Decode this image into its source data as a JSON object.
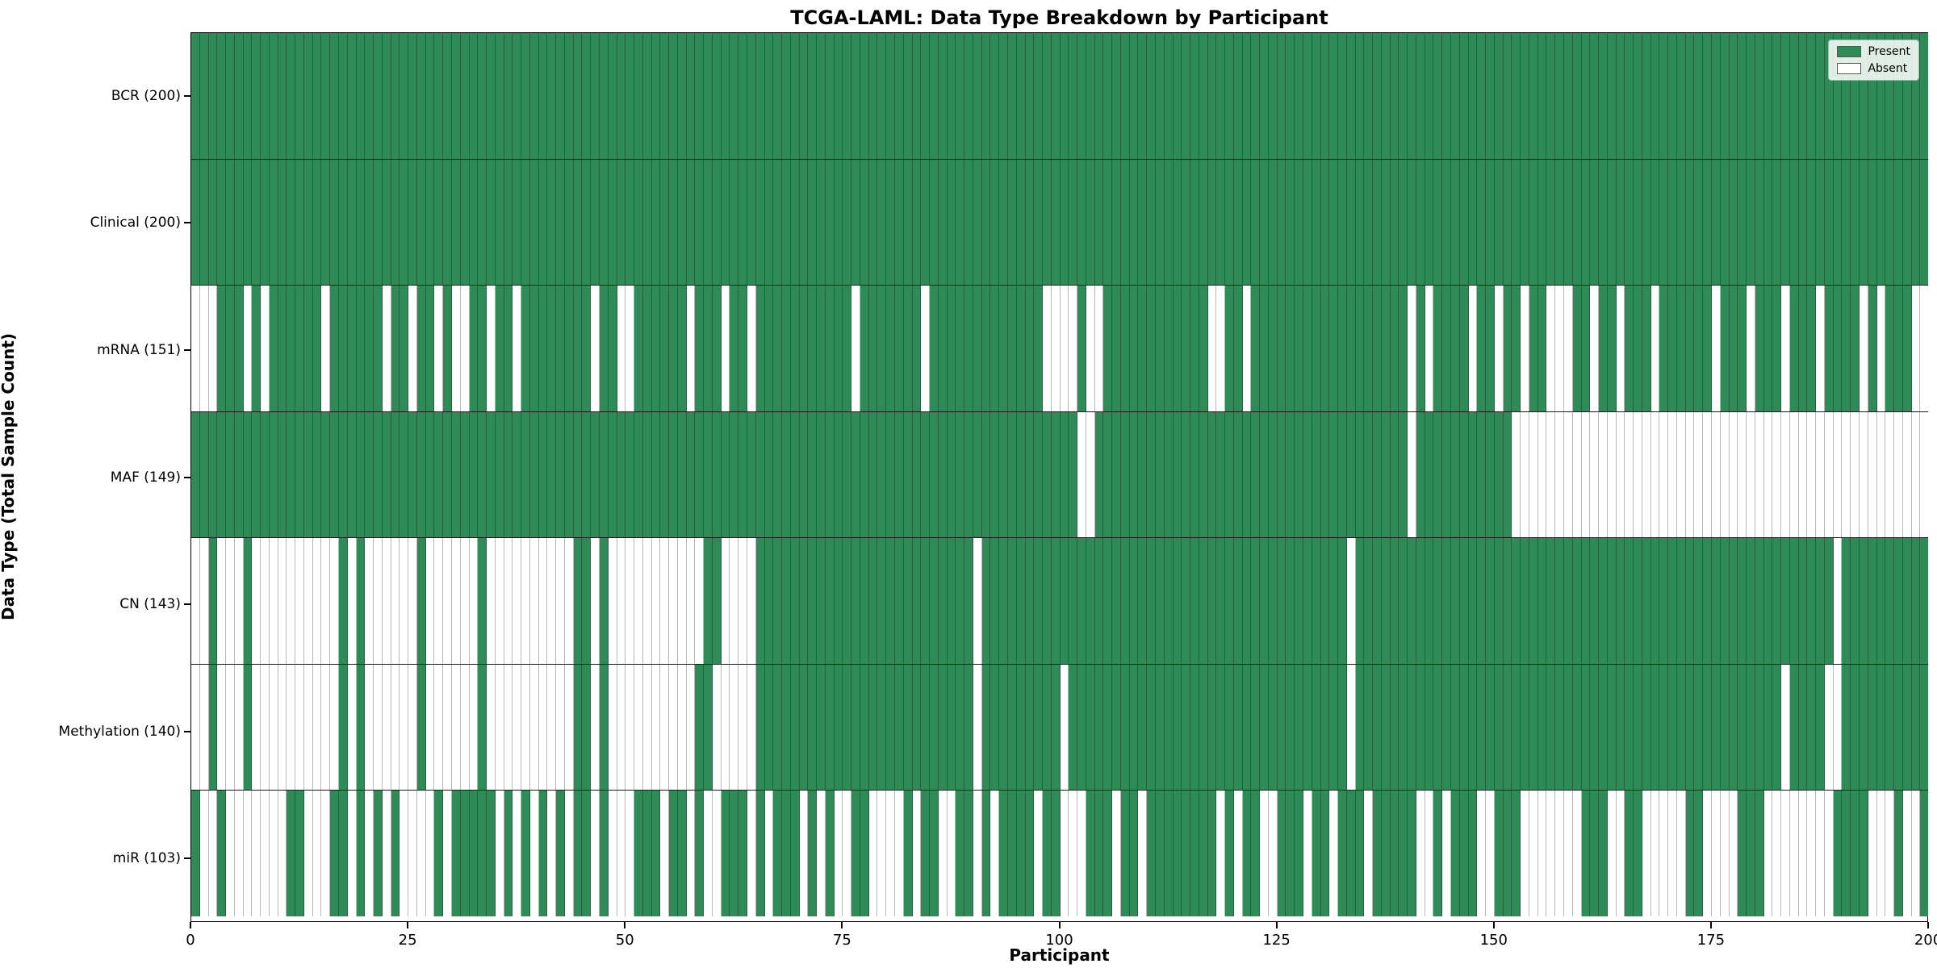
{
  "title": "TCGA-LAML: Data Type Breakdown by Participant",
  "x_axis": {
    "label": "Participant",
    "ticks": [
      0,
      25,
      50,
      75,
      100,
      125,
      150,
      175,
      200
    ]
  },
  "y_axis": {
    "label": "Data Type (Total Sample Count)"
  },
  "legend": {
    "present_label": "Present",
    "absent_label": "Absent"
  },
  "colors": {
    "present": "#2e8b57",
    "absent": "#ffffff",
    "cell_edge": "rgba(0,0,0,0.28)",
    "row_divider": "#1c1c1c",
    "plot_border": "#000000",
    "legend_bg": "rgba(255,255,255,0.85)"
  },
  "chart_data": {
    "type": "heatmap",
    "title": "TCGA-LAML: Data Type Breakdown by Participant",
    "xlabel": "Participant",
    "ylabel": "Data Type (Total Sample Count)",
    "x_range": [
      0,
      200
    ],
    "n_participants": 200,
    "legend_position": "upper right",
    "legend_entries": [
      "Present",
      "Absent"
    ],
    "rows": [
      {
        "label": "BCR (200)",
        "name": "BCR",
        "present_count": 200,
        "absent_participants": []
      },
      {
        "label": "Clinical (200)",
        "name": "Clinical",
        "present_count": 200,
        "absent_participants": []
      },
      {
        "label": "mRNA (151)",
        "name": "mRNA",
        "present_count": 151,
        "absent_participants": [
          0,
          1,
          2,
          6,
          8,
          15,
          22,
          25,
          28,
          30,
          31,
          34,
          37,
          46,
          49,
          50,
          57,
          61,
          64,
          76,
          84,
          98,
          99,
          100,
          101,
          103,
          104,
          117,
          118,
          121,
          140,
          142,
          147,
          150,
          153,
          156,
          157,
          158,
          161,
          164,
          168,
          175,
          179,
          183,
          187,
          192,
          194,
          198,
          199
        ]
      },
      {
        "label": "MAF (149)",
        "name": "MAF",
        "present_count": 149,
        "absent_participants": [
          102,
          103,
          140,
          152,
          153,
          154,
          155,
          156,
          157,
          158,
          159,
          160,
          161,
          162,
          163,
          164,
          165,
          166,
          167,
          168,
          169,
          170,
          171,
          172,
          173,
          174,
          175,
          176,
          177,
          178,
          179,
          180,
          181,
          182,
          183,
          184,
          185,
          186,
          187,
          188,
          189,
          190,
          191,
          192,
          193,
          194,
          195,
          196,
          197,
          198,
          199
        ]
      },
      {
        "label": "CN (143)",
        "name": "CN",
        "present_count": 143,
        "absent_participants": [
          0,
          1,
          3,
          4,
          5,
          7,
          8,
          9,
          10,
          11,
          12,
          13,
          14,
          15,
          16,
          18,
          20,
          21,
          22,
          23,
          24,
          25,
          27,
          28,
          29,
          30,
          31,
          32,
          34,
          35,
          36,
          37,
          38,
          39,
          40,
          41,
          42,
          43,
          46,
          48,
          49,
          50,
          51,
          52,
          53,
          54,
          55,
          56,
          57,
          58,
          61,
          62,
          63,
          64,
          90,
          133,
          189
        ]
      },
      {
        "label": "Methylation (140)",
        "name": "Methylation",
        "present_count": 140,
        "absent_participants": [
          0,
          1,
          3,
          4,
          5,
          7,
          8,
          9,
          10,
          11,
          12,
          13,
          14,
          15,
          16,
          18,
          20,
          21,
          22,
          23,
          24,
          25,
          27,
          28,
          29,
          30,
          31,
          32,
          34,
          35,
          36,
          37,
          38,
          39,
          40,
          41,
          42,
          43,
          46,
          48,
          49,
          50,
          51,
          52,
          53,
          54,
          55,
          56,
          57,
          60,
          61,
          62,
          63,
          64,
          90,
          100,
          133,
          183,
          188,
          189
        ]
      },
      {
        "label": "miR (103)",
        "name": "miR",
        "present_count": 103,
        "absent_participants": [
          1,
          2,
          4,
          5,
          6,
          7,
          8,
          9,
          10,
          13,
          14,
          15,
          18,
          20,
          22,
          24,
          25,
          26,
          27,
          29,
          35,
          37,
          39,
          41,
          43,
          46,
          48,
          49,
          50,
          54,
          57,
          59,
          60,
          64,
          66,
          70,
          72,
          74,
          75,
          78,
          79,
          80,
          81,
          83,
          86,
          87,
          90,
          92,
          97,
          100,
          101,
          102,
          106,
          109,
          118,
          120,
          123,
          124,
          128,
          131,
          135,
          141,
          142,
          144,
          148,
          149,
          153,
          154,
          155,
          156,
          157,
          158,
          159,
          163,
          164,
          167,
          168,
          169,
          170,
          171,
          174,
          175,
          176,
          177,
          181,
          182,
          183,
          184,
          185,
          186,
          187,
          188,
          193,
          194,
          195,
          197,
          198
        ]
      }
    ]
  }
}
